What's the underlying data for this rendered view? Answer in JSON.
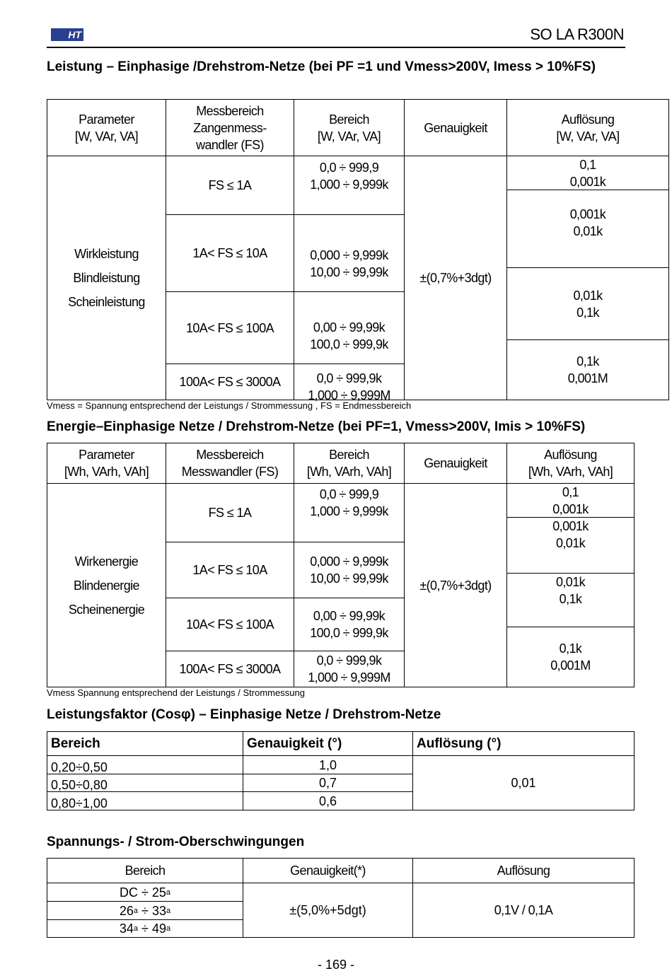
{
  "header": {
    "logo": "HT",
    "model": "SO LA R300N"
  },
  "section1": {
    "title": "Leistung – Einphasige /Drehstrom-Netze (bei PF =1 und Vmess>200V, Imess > 10%FS)",
    "headers": [
      "Parameter\n[W, VAr, VA]",
      "Messbereich\nZangenmess-\nwandler (FS)",
      "Bereich\n[W, VAr, VA]",
      "Genauigkeit",
      "Auflösung\n[W, VAr, VA]"
    ],
    "parameters": "Wirkleistung\nBlindleistung\nScheinleistung",
    "ranges": [
      "FS ≤ 1A",
      "1A< FS ≤ 10A",
      "10A< FS ≤ 100A",
      "100A< FS ≤ 3000A"
    ],
    "bereich": [
      "0,0 ÷ 999,9\n1,000 ÷ 9,999k",
      "0,000 ÷ 9,999k\n10,00 ÷ 99,99k",
      "0,00 ÷ 99,99k\n100,0 ÷ 999,9k",
      "0,0 ÷ 999,9k\n1,000 ÷ 9,999M"
    ],
    "accuracy": "±(0,7%+3dgt)",
    "resolution": [
      "0,1\n0,001k",
      "0,001k\n0,01k",
      "0,01k\n0,1k",
      "0,1k\n0,001M"
    ],
    "note": "Vmess = Spannung entsprechend der Leistungs / Strommessung , FS = Endmessbereich"
  },
  "section2": {
    "title": "Energie–Einphasige Netze / Drehstrom-Netze (bei PF=1, Vmess>200V, Imis > 10%FS)",
    "headers": [
      "Parameter\n[Wh, VArh, VAh]",
      "Messbereich\nMesswandler (FS)",
      "Bereich\n[Wh, VArh, VAh]",
      "Genauigkeit",
      "Auflösung\n[Wh, VArh, VAh]"
    ],
    "parameters": "Wirkenergie\nBlindenergie\nScheinenergie",
    "ranges": [
      "FS ≤ 1A",
      "1A< FS ≤ 10A",
      "10A< FS ≤ 100A",
      "100A< FS ≤ 3000A"
    ],
    "bereich": [
      "0,0 ÷ 999,9\n1,000 ÷ 9,999k",
      "0,000 ÷ 9,999k\n10,00 ÷ 99,99k",
      "0,00 ÷ 99,99k\n100,0 ÷ 999,9k",
      "0,0 ÷ 999,9k\n1,000 ÷ 9,999M"
    ],
    "accuracy": "±(0,7%+3dgt)",
    "resolution": [
      "0,1\n0,001k",
      "0,001k\n0,01k",
      "0,01k\n0,1k",
      "0,1k\n0,001M"
    ],
    "note": "Vmess  Spannung entsprechend der Leistungs / Strommessung"
  },
  "section3": {
    "title": "Leistungsfaktor (Cosφ) – Einphasige Netze / Drehstrom-Netze",
    "headers": [
      "Bereich",
      "Genauigkeit (°)",
      "Auflösung (°)"
    ],
    "rows": [
      {
        "range": "0,20÷0,50",
        "accuracy": "1,0"
      },
      {
        "range": "0,50÷0,80",
        "accuracy": "0,7"
      },
      {
        "range": "0,80÷1,00",
        "accuracy": "0,6"
      }
    ],
    "resolution": "0,01"
  },
  "section4": {
    "title": "Spannungs- / Strom-Oberschwingungen",
    "headers": [
      "Bereich",
      "Genauigkeit(*)",
      "Auflösung"
    ],
    "rows": [
      {
        "from": "DC",
        "to": "25"
      },
      {
        "from": "26",
        "to": "33"
      },
      {
        "from": "34",
        "to": "49"
      }
    ],
    "sup": "a",
    "sep": " ÷ ",
    "accuracy": "±(5,0%+5dgt)",
    "resolution": "0,1V / 0,1A"
  },
  "footer": {
    "page": "- 169 -"
  }
}
